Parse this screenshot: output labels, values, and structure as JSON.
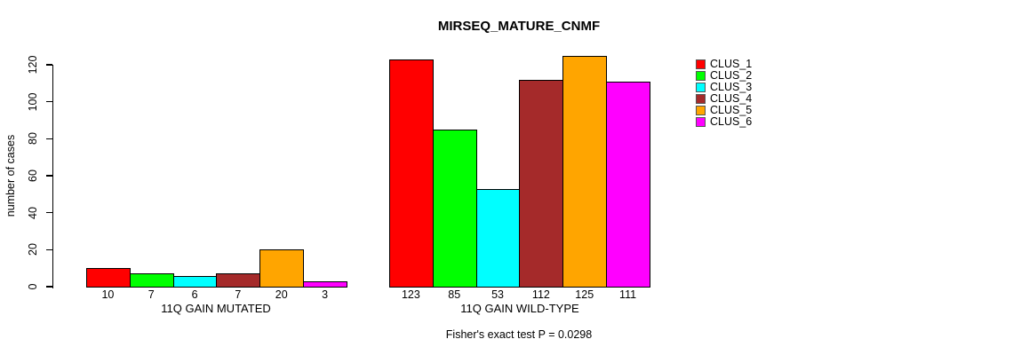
{
  "chart_data": {
    "type": "bar",
    "title": "MIRSEQ_MATURE_CNMF",
    "ylabel": "number of cases",
    "xlabel": "",
    "ylim": [
      0,
      120
    ],
    "yticks": [
      0,
      20,
      40,
      60,
      80,
      100,
      120
    ],
    "grid": false,
    "clusters": [
      {
        "name": "CLUS_1",
        "color": "#FF0000"
      },
      {
        "name": "CLUS_2",
        "color": "#00FF00"
      },
      {
        "name": "CLUS_3",
        "color": "#00FFFF"
      },
      {
        "name": "CLUS_4",
        "color": "#A52A2A"
      },
      {
        "name": "CLUS_5",
        "color": "#FFA500"
      },
      {
        "name": "CLUS_6",
        "color": "#FF00FF"
      }
    ],
    "groups": [
      {
        "label": "11Q GAIN MUTATED",
        "values": [
          10,
          7,
          6,
          7,
          20,
          3
        ]
      },
      {
        "label": "11Q GAIN WILD-TYPE",
        "values": [
          123,
          85,
          53,
          112,
          125,
          111
        ]
      }
    ],
    "legend": {
      "position": "top-right",
      "entries": [
        "CLUS_1",
        "CLUS_2",
        "CLUS_3",
        "CLUS_4",
        "CLUS_5",
        "CLUS_6"
      ]
    },
    "annotation": "Fisher's exact test P = 0.0298",
    "bar_border_color": "#000000",
    "text_color": "#000000",
    "background_color": "#FFFFFF"
  }
}
